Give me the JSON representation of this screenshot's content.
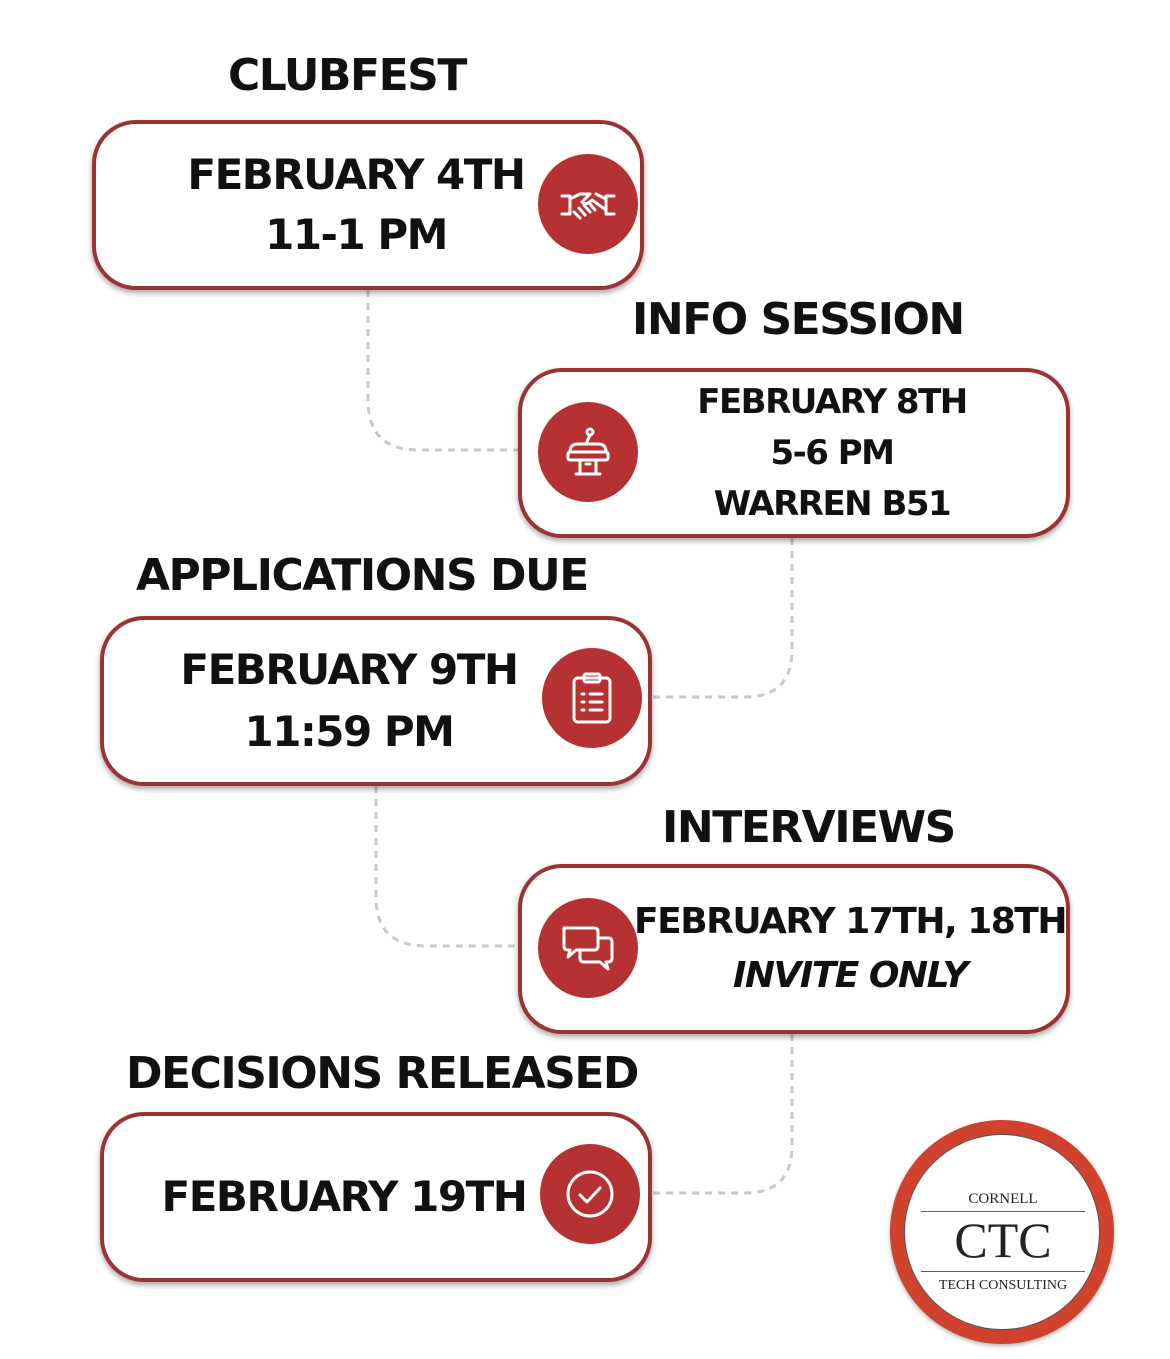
{
  "events": [
    {
      "title": "CLUBFEST",
      "lines": [
        "FEBRUARY 4TH",
        "11-1 PM"
      ],
      "icon": "handshake-icon"
    },
    {
      "title": "INFO SESSION",
      "lines": [
        "FEBRUARY 8TH",
        "5-6 PM",
        "WARREN B51"
      ],
      "icon": "podium-icon"
    },
    {
      "title": "APPLICATIONS DUE",
      "lines": [
        "FEBRUARY 9TH",
        "11:59 PM"
      ],
      "icon": "clipboard-icon"
    },
    {
      "title": "INTERVIEWS",
      "lines": [
        "FEBRUARY 17TH, 18TH",
        "INVITE ONLY"
      ],
      "icon": "chat-bubbles-icon"
    },
    {
      "title": "DECISIONS RELEASED",
      "lines": [
        "FEBRUARY 19TH"
      ],
      "icon": "checkmark-icon"
    }
  ],
  "logo": {
    "top_text": "CORNELL",
    "main_text": "CTC",
    "bottom_text": "TECH CONSULTING"
  },
  "colors": {
    "accent": "#b63232",
    "border": "#9c3232",
    "logo_ring": "#d0412e",
    "connector": "#c8c8c8"
  }
}
